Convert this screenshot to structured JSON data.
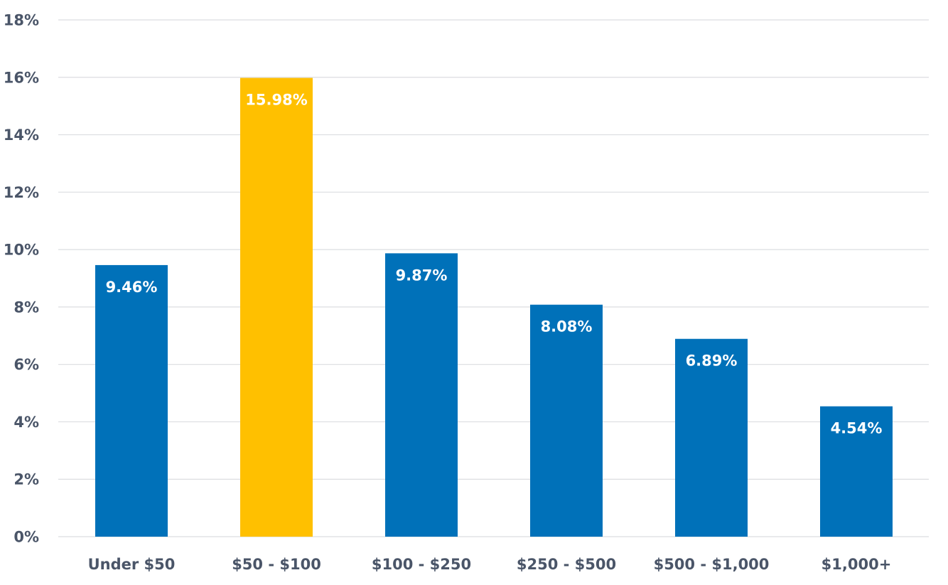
{
  "chart_data": {
    "type": "bar",
    "categories": [
      "Under $50",
      "$50 - $100",
      "$100 - $250",
      "$250 - $500",
      "$500 - $1,000",
      "$1,000+"
    ],
    "values": [
      9.46,
      15.98,
      9.87,
      8.08,
      6.89,
      4.54
    ],
    "data_labels": [
      "9.46%",
      "15.98%",
      "9.87%",
      "8.08%",
      "6.89%",
      "4.54%"
    ],
    "highlight_index": 1,
    "colors": {
      "default": "#0071b9",
      "highlight": "#ffc000"
    },
    "title": "",
    "xlabel": "",
    "ylabel": "",
    "ylim": [
      0,
      18
    ],
    "yticks": [
      0,
      2,
      4,
      6,
      8,
      10,
      12,
      14,
      16,
      18
    ],
    "ytick_labels": [
      "0%",
      "2%",
      "4%",
      "6%",
      "8%",
      "10%",
      "12%",
      "14%",
      "16%",
      "18%"
    ],
    "grid": true,
    "legend": "none"
  }
}
